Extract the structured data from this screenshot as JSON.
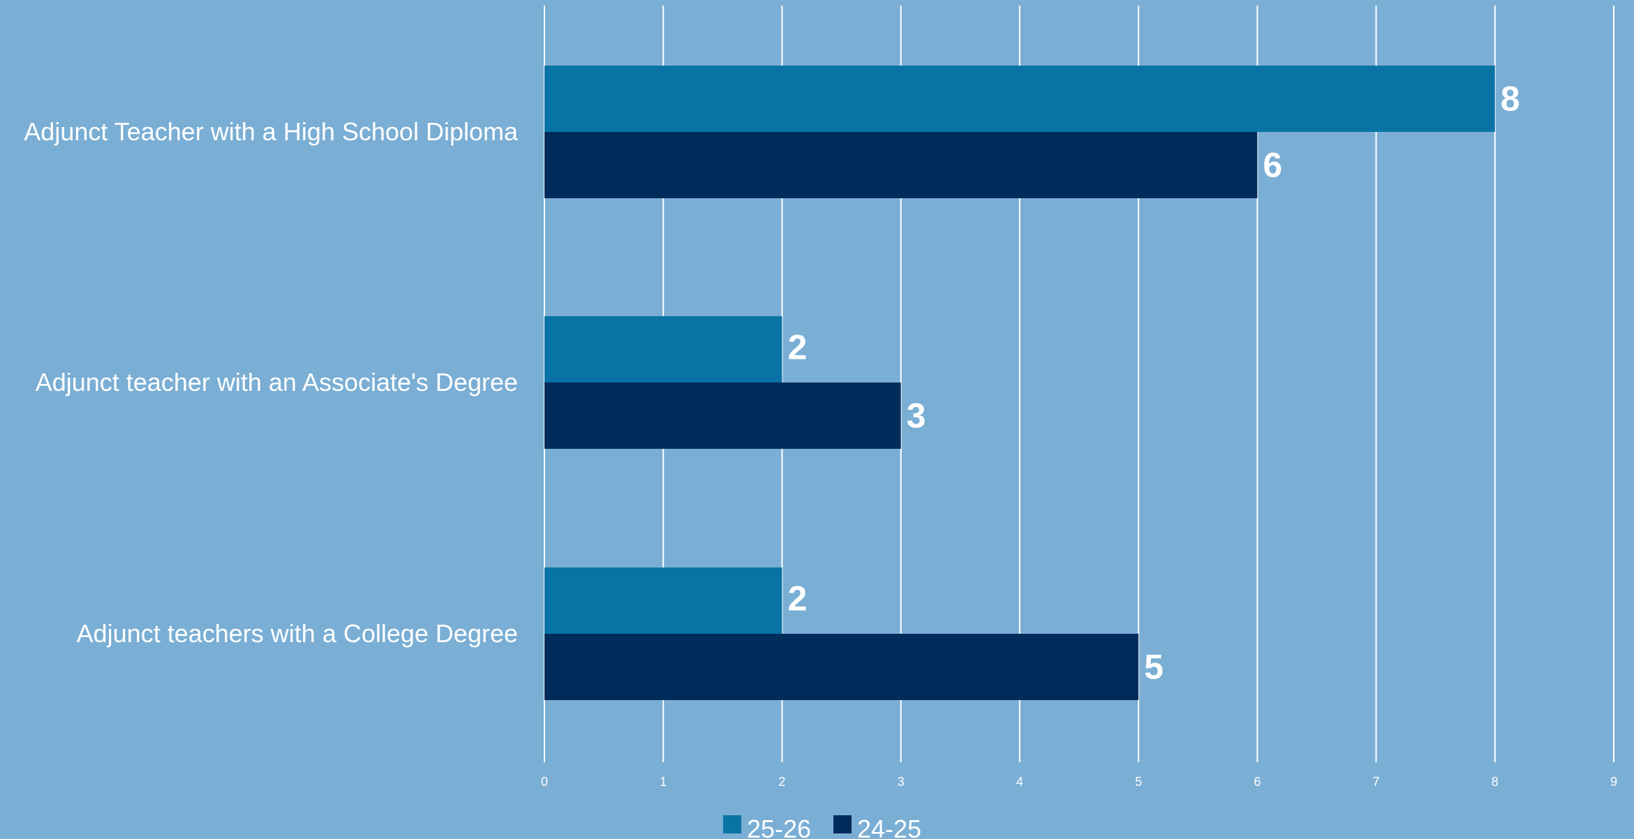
{
  "chart_data": {
    "type": "bar",
    "orientation": "horizontal",
    "categories": [
      "Adjunct Teacher with a High School Diploma",
      "Adjunct teacher with an Associate's Degree",
      "Adjunct teachers with a College Degree"
    ],
    "series": [
      {
        "name": "25-26",
        "values": [
          8,
          2,
          2
        ],
        "color": "#0a73a5"
      },
      {
        "name": "24-25",
        "values": [
          6,
          3,
          5
        ],
        "color": "#002c5c"
      }
    ],
    "xlim": [
      0,
      9
    ],
    "xticks": [
      "0",
      "1",
      "2",
      "3",
      "4",
      "5",
      "6",
      "7",
      "8",
      "9"
    ],
    "grid": "vertical",
    "legend_position": "bottom",
    "data_labels": true,
    "background_color": "#7aaed4",
    "grid_color": "#ffffff",
    "text_color": "#ffffff"
  }
}
